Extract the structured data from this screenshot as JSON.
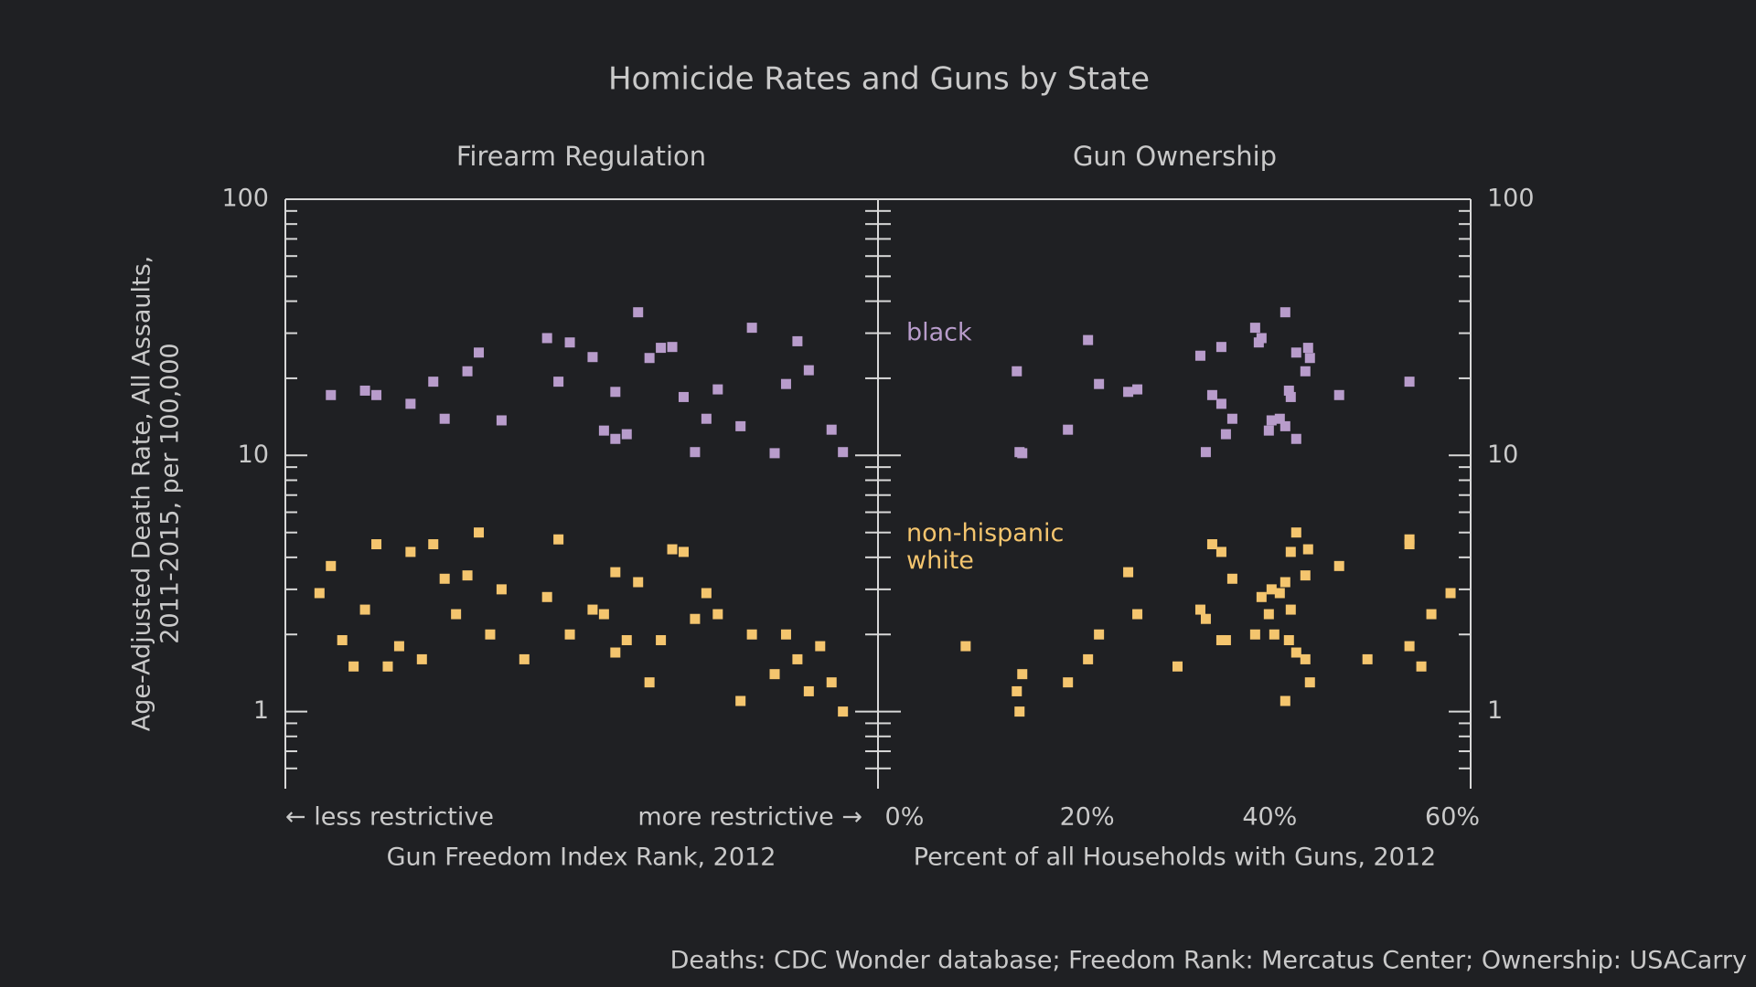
{
  "title": "Homicide Rates and Guns by State",
  "ylabel": [
    "Age-Adjusted Death Rate, All Assaults,",
    "2011-2015, per 100,000"
  ],
  "source": "Deaths: CDC Wonder database; Freedom Rank: Mercatus Center; Ownership: USACarry",
  "chart_data": [
    {
      "type": "scatter",
      "title": "Firearm Regulation",
      "xlabel": "Gun Freedom Index Rank, 2012",
      "x_annotations": [
        "← less restrictive",
        "more restrictive →"
      ],
      "xlim": [
        -2,
        50
      ],
      "ylim": [
        0.5,
        100
      ],
      "log_y": true,
      "yticks": [
        1,
        10,
        100
      ],
      "yminor_ticks": [
        0.6,
        0.7,
        0.8,
        0.9,
        2,
        3,
        4,
        5,
        6,
        7,
        8,
        9,
        20,
        30,
        40,
        50,
        60,
        70,
        80,
        90
      ],
      "series": [
        {
          "color": "#b89ccb",
          "x": [
            2,
            5,
            6,
            9,
            11,
            12,
            14,
            15,
            17,
            21,
            22,
            23,
            25,
            26,
            27,
            27,
            28,
            29,
            30,
            31,
            32,
            33,
            34,
            35,
            36,
            38,
            39,
            41,
            42,
            43,
            44,
            46,
            47
          ],
          "values": [
            17.2,
            17.9,
            17.2,
            15.9,
            19.4,
            13.9,
            21.3,
            25.2,
            13.7,
            28.7,
            19.4,
            27.6,
            24.2,
            12.5,
            17.7,
            11.6,
            12.1,
            36.2,
            24.0,
            26.3,
            26.5,
            16.9,
            10.3,
            13.9,
            18.1,
            13.0,
            31.5,
            10.2,
            19.0,
            27.9,
            21.5,
            12.6,
            10.3
          ]
        },
        {
          "color": "#f4c56e",
          "x": [
            1,
            2,
            3,
            4,
            5,
            6,
            7,
            8,
            9,
            10,
            11,
            12,
            13,
            14,
            15,
            16,
            17,
            19,
            21,
            22,
            23,
            25,
            26,
            27,
            27,
            28,
            29,
            30,
            31,
            32,
            33,
            34,
            35,
            36,
            38,
            39,
            41,
            42,
            43,
            44,
            45,
            46,
            47
          ],
          "values": [
            2.9,
            3.7,
            1.9,
            1.5,
            2.5,
            4.5,
            1.5,
            1.8,
            4.2,
            1.6,
            4.5,
            3.3,
            2.4,
            3.4,
            5.0,
            2.0,
            3.0,
            1.6,
            2.8,
            4.7,
            2.0,
            2.5,
            2.4,
            3.5,
            1.7,
            1.9,
            3.2,
            1.3,
            1.9,
            4.3,
            4.2,
            2.3,
            2.9,
            2.4,
            1.1,
            2.0,
            1.4,
            2.0,
            1.6,
            1.2,
            1.8,
            1.3,
            1.0
          ]
        }
      ]
    },
    {
      "type": "scatter",
      "title": "Gun Ownership",
      "xlabel": "Percent of all Households with Guns, 2012",
      "xlim": [
        -2.8,
        62
      ],
      "ylim": [
        0.5,
        100
      ],
      "log_y": true,
      "xticks": [
        {
          "value": 0,
          "label": "0%"
        },
        {
          "value": 20,
          "label": "20%"
        },
        {
          "value": 40,
          "label": "40%"
        },
        {
          "value": 60,
          "label": "60%"
        }
      ],
      "yticks": [
        1,
        10,
        100
      ],
      "yminor_ticks": [
        0.6,
        0.7,
        0.8,
        0.9,
        2,
        3,
        4,
        5,
        6,
        7,
        8,
        9,
        20,
        30,
        40,
        50,
        60,
        70,
        80,
        90
      ],
      "series": [
        {
          "name": "black",
          "color": "#b89ccb",
          "x": [
            12.3,
            12.6,
            12.9,
            17.9,
            20.1,
            21.3,
            24.5,
            25.5,
            32.4,
            33.0,
            33.7,
            34.7,
            34.7,
            35.2,
            35.9,
            38.4,
            38.8,
            39.1,
            39.9,
            40.2,
            41.1,
            41.7,
            41.7,
            42.1,
            42.3,
            42.9,
            42.9,
            43.9,
            44.2,
            44.4,
            47.6,
            55.3
          ],
          "values": [
            21.3,
            10.3,
            10.2,
            12.6,
            28.2,
            19.0,
            17.7,
            18.1,
            24.5,
            10.3,
            17.2,
            26.5,
            15.9,
            12.1,
            13.9,
            31.5,
            27.6,
            28.7,
            12.5,
            13.7,
            13.9,
            36.2,
            13.0,
            17.9,
            16.9,
            25.2,
            11.6,
            21.3,
            26.3,
            24.0,
            17.2,
            19.4
          ]
        },
        {
          "name": "non-hispanic white",
          "color": "#f4c56e",
          "x": [
            6.7,
            12.3,
            12.6,
            12.9,
            17.9,
            20.1,
            21.3,
            24.5,
            25.5,
            29.9,
            32.4,
            33.0,
            33.7,
            34.7,
            34.7,
            35.2,
            35.9,
            38.4,
            39.1,
            39.9,
            40.2,
            40.5,
            41.1,
            41.7,
            41.7,
            42.1,
            42.3,
            42.3,
            42.9,
            42.9,
            43.9,
            43.9,
            44.2,
            44.4,
            47.6,
            50.7,
            55.3,
            55.3,
            55.3,
            56.6,
            57.7,
            59.8
          ],
          "values": [
            1.8,
            1.2,
            1.0,
            1.4,
            1.3,
            1.6,
            2.0,
            3.5,
            2.4,
            1.5,
            2.5,
            2.3,
            4.5,
            4.2,
            1.9,
            1.9,
            3.3,
            2.0,
            2.8,
            2.4,
            3.0,
            2.0,
            2.9,
            1.1,
            3.2,
            1.9,
            2.5,
            4.2,
            5.0,
            1.7,
            3.4,
            1.6,
            4.3,
            1.3,
            3.7,
            1.6,
            4.7,
            4.5,
            1.8,
            1.5,
            2.4,
            2.9
          ]
        }
      ]
    }
  ]
}
